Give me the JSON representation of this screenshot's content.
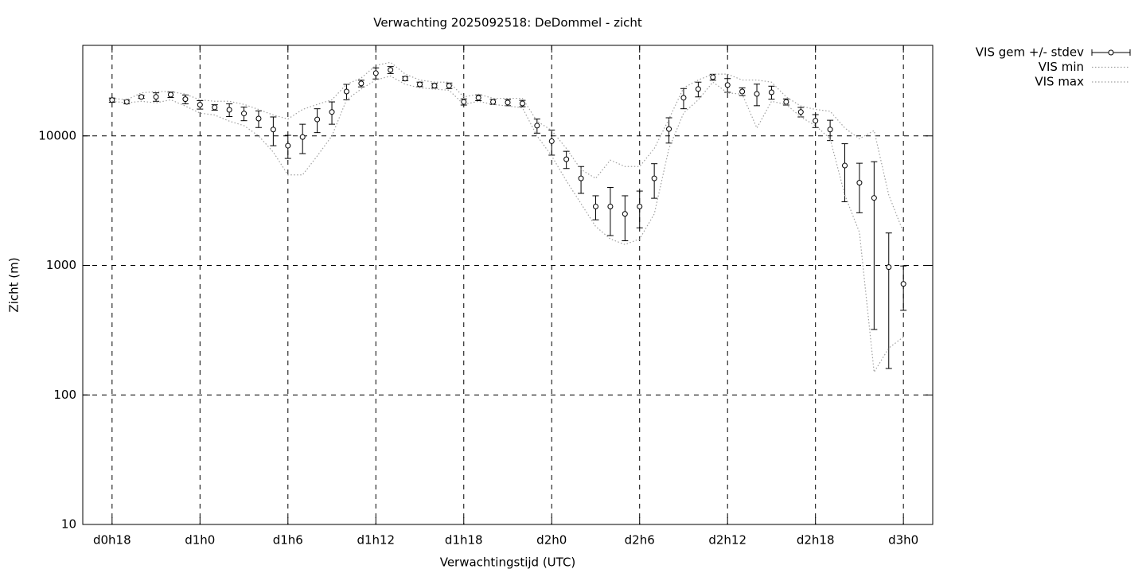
{
  "chart_data": {
    "type": "line",
    "title": "Verwachting 2025092518: DeDommel - zicht",
    "x_label": "Verwachtingstijd (UTC)",
    "y_label": "Zicht (m)",
    "x": [
      18,
      19,
      20,
      21,
      22,
      23,
      24,
      25,
      26,
      27,
      28,
      29,
      30,
      31,
      32,
      33,
      34,
      35,
      36,
      37,
      38,
      39,
      40,
      41,
      42,
      43,
      44,
      45,
      46,
      47,
      48,
      49,
      50,
      51,
      52,
      53,
      54,
      55,
      56,
      57,
      58,
      59,
      60,
      61,
      62,
      63,
      64,
      65,
      66,
      67,
      68,
      69,
      70,
      71,
      72
    ],
    "series": [
      {
        "name": "VIS gem +/- stdev",
        "style": "errorbar",
        "color": "#000000",
        "values": [
          18900,
          18300,
          20000,
          20000,
          20800,
          19200,
          17400,
          16600,
          15900,
          14900,
          13600,
          11200,
          8400,
          9800,
          13400,
          15300,
          22000,
          25400,
          30500,
          32300,
          27700,
          25000,
          24400,
          24400,
          18300,
          19700,
          18300,
          18100,
          17800,
          12000,
          9100,
          6600,
          4700,
          2850,
          2850,
          2500,
          2850,
          4700,
          11300,
          19700,
          23000,
          28400,
          24700,
          22000,
          21100,
          21700,
          18300,
          15300,
          13100,
          11200,
          5900,
          4350,
          3320,
          970,
          720
        ],
        "errors": [
          700,
          600,
          500,
          1500,
          1000,
          1500,
          1300,
          800,
          1800,
          1800,
          2000,
          2800,
          1700,
          2500,
          2800,
          3000,
          3000,
          1500,
          3000,
          2000,
          1000,
          1000,
          1000,
          1200,
          1000,
          1000,
          800,
          1000,
          1000,
          1500,
          2000,
          1000,
          1100,
          600,
          1150,
          950,
          900,
          1400,
          2500,
          3500,
          3000,
          1500,
          3000,
          1500,
          4000,
          2500,
          1000,
          1300,
          1500,
          2000,
          2800,
          1800,
          3000,
          810,
          270
        ]
      },
      {
        "name": "VIS min",
        "style": "dotted",
        "color": "#a0a0a0",
        "values": [
          18500,
          18000,
          18500,
          18000,
          19000,
          17000,
          15000,
          14500,
          13000,
          12000,
          10000,
          7500,
          5000,
          5000,
          7000,
          10000,
          19000,
          23000,
          27000,
          29000,
          25000,
          23500,
          23000,
          22500,
          17500,
          18500,
          17500,
          17000,
          16500,
          10000,
          7000,
          4500,
          3000,
          2000,
          1600,
          1450,
          1600,
          2500,
          8000,
          15000,
          19000,
          26000,
          21500,
          21000,
          11500,
          18500,
          17500,
          14000,
          12000,
          9500,
          3500,
          1800,
          150,
          230,
          280
        ]
      },
      {
        "name": "VIS max",
        "style": "dotted",
        "color": "#a0a0a0",
        "values": [
          19500,
          19000,
          21500,
          22000,
          22000,
          21000,
          19000,
          18500,
          18500,
          17500,
          16000,
          14500,
          13500,
          16000,
          17500,
          19000,
          25000,
          28000,
          35000,
          37000,
          30000,
          27000,
          26000,
          26000,
          20000,
          21000,
          19500,
          19500,
          19500,
          13000,
          11000,
          8000,
          5500,
          4700,
          6500,
          5800,
          5800,
          8000,
          13500,
          23500,
          27000,
          30000,
          30000,
          27000,
          27000,
          26000,
          20000,
          17000,
          16000,
          15500,
          11500,
          9500,
          11000,
          3500,
          1800
        ]
      }
    ],
    "xlim": [
      16,
      74
    ],
    "xticks": [
      {
        "value": 18,
        "label": "d0h18"
      },
      {
        "value": 24,
        "label": "d1h0"
      },
      {
        "value": 30,
        "label": "d1h6"
      },
      {
        "value": 36,
        "label": "d1h12"
      },
      {
        "value": 42,
        "label": "d1h18"
      },
      {
        "value": 48,
        "label": "d2h0"
      },
      {
        "value": 54,
        "label": "d2h6"
      },
      {
        "value": 60,
        "label": "d2h12"
      },
      {
        "value": 66,
        "label": "d2h18"
      },
      {
        "value": 72,
        "label": "d3h0"
      }
    ],
    "ylim": [
      10,
      50000
    ],
    "yticks": [
      10,
      100,
      1000,
      10000
    ],
    "y_log": true,
    "grid": true,
    "legend": "top-right"
  }
}
